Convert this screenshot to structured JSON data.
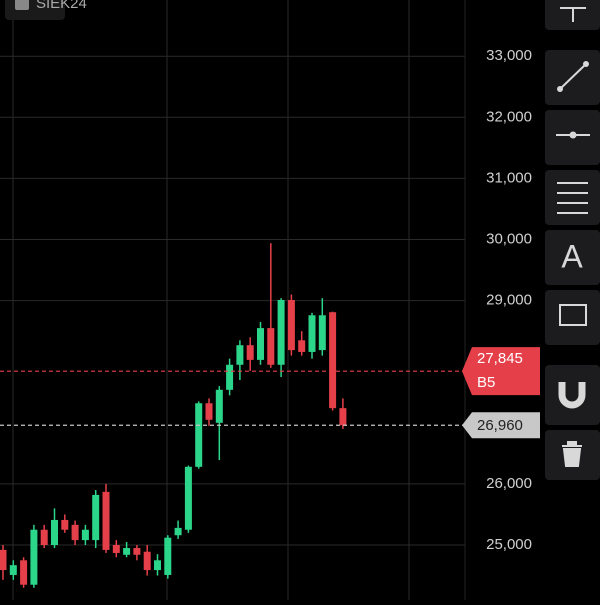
{
  "symbol": "SIEK24",
  "toolbar": {
    "text_tool": "A"
  },
  "chart_data": {
    "type": "candlestick",
    "ylim": [
      24100,
      33920
    ],
    "yticks": [
      {
        "value": 25000,
        "label": "25,000"
      },
      {
        "value": 26000,
        "label": "26,000"
      },
      {
        "value": 29000,
        "label": "29,000"
      },
      {
        "value": 30000,
        "label": "30,000"
      },
      {
        "value": 31000,
        "label": "31,000"
      },
      {
        "value": 32000,
        "label": "32,000"
      },
      {
        "value": 33000,
        "label": "33,000"
      }
    ],
    "grid": true,
    "up_color": "#2bd68a",
    "down_color": "#e5404a",
    "series": {
      "open": [
        24920,
        24510,
        24750,
        24350,
        25250,
        25000,
        25410,
        25330,
        25080,
        25080,
        25870,
        25000,
        24840,
        24950,
        24890,
        24590,
        24510,
        25160,
        25250,
        26280,
        27320,
        27000,
        27540,
        27950,
        28270,
        28030,
        28550,
        27950,
        29010,
        28350,
        28160,
        28190,
        28810,
        27240
      ],
      "high": [
        25000,
        24750,
        24800,
        25330,
        25330,
        25600,
        25500,
        25400,
        25330,
        25900,
        26000,
        25080,
        25050,
        25000,
        25000,
        24850,
        25160,
        25400,
        26300,
        27350,
        27400,
        27600,
        28050,
        28350,
        28400,
        28650,
        29940,
        29040,
        29100,
        28500,
        28800,
        29040,
        28820,
        27400
      ],
      "low": [
        24430,
        24430,
        24300,
        24300,
        24950,
        24950,
        25200,
        25000,
        25000,
        24950,
        24870,
        24800,
        24800,
        24750,
        24500,
        24500,
        24450,
        25100,
        25200,
        26250,
        26950,
        26390,
        27450,
        27700,
        27850,
        27950,
        27900,
        27750,
        28100,
        28100,
        28050,
        28100,
        27200,
        26900
      ],
      "close": [
        24590,
        24670,
        24350,
        25250,
        25000,
        25410,
        25250,
        25080,
        25250,
        25820,
        24920,
        24870,
        24950,
        24840,
        24590,
        24750,
        25120,
        25280,
        26280,
        27320,
        27050,
        27540,
        27950,
        28270,
        28030,
        28550,
        27950,
        29010,
        28190,
        28160,
        28760,
        28760,
        27240,
        26960
      ]
    },
    "price_lines": [
      {
        "value": 27845,
        "label": "27,845",
        "tag": "B5",
        "color": "#e5404a"
      },
      {
        "value": 26960,
        "label": "26,960",
        "color": "#c8c8c8"
      }
    ]
  }
}
